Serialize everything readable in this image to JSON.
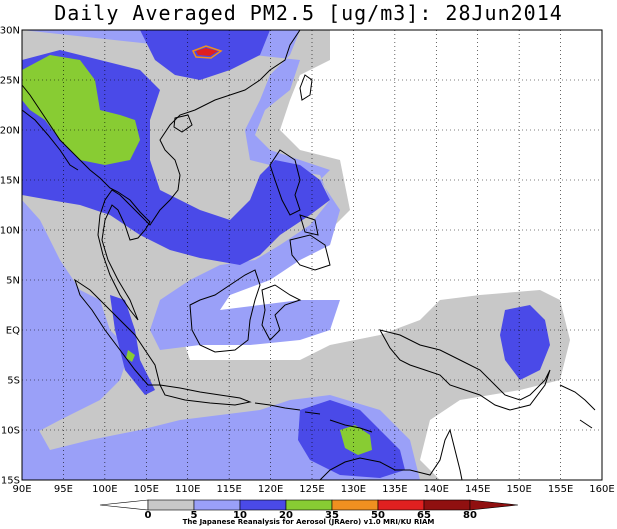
{
  "title": "Daily Averaged PM2.5 [ug/m3]: 28Jun2014",
  "credit": "The Japanese Reanalysis for Aerosol (JRAero) v1.0 MRI/KU RIAM",
  "map": {
    "lon_range": [
      90,
      160
    ],
    "lat_range": [
      -15,
      30
    ],
    "lon_ticks": [
      "90E",
      "95E",
      "100E",
      "105E",
      "110E",
      "115E",
      "120E",
      "125E",
      "130E",
      "135E",
      "140E",
      "145E",
      "150E",
      "155E",
      "160E"
    ],
    "lat_ticks": [
      "30N",
      "25N",
      "20N",
      "15N",
      "10N",
      "5N",
      "EQ",
      "5S",
      "10S",
      "15S"
    ],
    "grid": "dotted"
  },
  "colorbar": {
    "labels": [
      "0",
      "5",
      "10",
      "20",
      "35",
      "50",
      "65",
      "80"
    ],
    "colors": [
      "#ffffff",
      "#c8c8c8",
      "#9aa0f8",
      "#4a4ae8",
      "#88cc33",
      "#f09020",
      "#e02020",
      "#901010"
    ],
    "units": "ug/m3"
  }
}
